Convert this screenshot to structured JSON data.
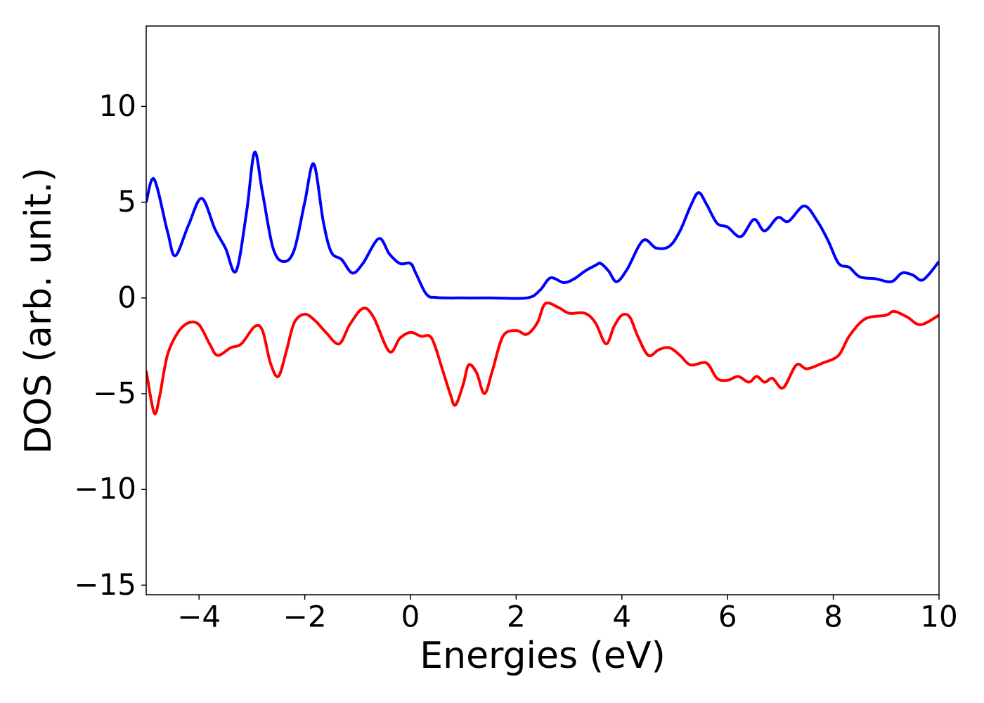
{
  "chart_data": {
    "type": "line",
    "xlabel": "Energies (eV)",
    "ylabel": "DOS (arb. unit.)",
    "xlim": [
      -5,
      10
    ],
    "ylim": [
      -15.5,
      14.2
    ],
    "xticks": [
      {
        "value": -4,
        "label": "−4"
      },
      {
        "value": -2,
        "label": "−2"
      },
      0,
      2,
      4,
      6,
      8,
      10
    ],
    "yticks": [
      {
        "value": -15,
        "label": "−15"
      },
      {
        "value": -10,
        "label": "−10"
      },
      {
        "value": -5,
        "label": "−5"
      },
      0,
      5,
      10
    ],
    "series": [
      {
        "color": "#0000ff",
        "x": [
          -5,
          -4.85,
          -4.6,
          -4.45,
          -4.2,
          -3.95,
          -3.7,
          -3.5,
          -3.3,
          -3.1,
          -2.95,
          -2.8,
          -2.6,
          -2.4,
          -2.2,
          -2.0,
          -1.83,
          -1.65,
          -1.5,
          -1.3,
          -1.1,
          -0.9,
          -0.6,
          -0.4,
          -0.2,
          0,
          0.1,
          0.3,
          0.5,
          1.0,
          1.5,
          2.2,
          2.45,
          2.65,
          2.9,
          3.1,
          3.3,
          3.5,
          3.6,
          3.75,
          3.9,
          4.1,
          4.4,
          4.65,
          4.9,
          5.1,
          5.3,
          5.45,
          5.6,
          5.8,
          6.0,
          6.25,
          6.5,
          6.7,
          6.95,
          7.15,
          7.45,
          7.7,
          7.9,
          8.1,
          8.3,
          8.5,
          8.8,
          9.1,
          9.3,
          9.5,
          9.7,
          10
        ],
        "values": [
          5.0,
          6.2,
          3.5,
          2.2,
          3.8,
          5.2,
          3.6,
          2.6,
          1.4,
          4.5,
          7.6,
          5.5,
          2.6,
          1.9,
          2.5,
          5.0,
          7.0,
          4.0,
          2.4,
          2.0,
          1.3,
          1.8,
          3.1,
          2.3,
          1.8,
          1.8,
          1.3,
          0.2,
          0.02,
          0,
          0,
          0,
          0.4,
          1.05,
          0.8,
          1.0,
          1.4,
          1.7,
          1.8,
          1.4,
          0.85,
          1.5,
          3.0,
          2.6,
          2.7,
          3.5,
          4.8,
          5.5,
          4.9,
          3.9,
          3.7,
          3.2,
          4.1,
          3.5,
          4.2,
          4.0,
          4.8,
          4.0,
          3.0,
          1.8,
          1.6,
          1.1,
          1.0,
          0.85,
          1.3,
          1.2,
          0.95,
          1.9
        ]
      },
      {
        "color": "#ff0000",
        "x": [
          -5,
          -4.85,
          -4.75,
          -4.6,
          -4.4,
          -4.2,
          -4.0,
          -3.8,
          -3.65,
          -3.4,
          -3.2,
          -2.95,
          -2.8,
          -2.65,
          -2.5,
          -2.35,
          -2.2,
          -2.0,
          -1.8,
          -1.6,
          -1.35,
          -1.15,
          -0.9,
          -0.7,
          -0.4,
          -0.2,
          0,
          0.2,
          0.4,
          0.6,
          0.75,
          0.85,
          1.0,
          1.1,
          1.25,
          1.4,
          1.55,
          1.75,
          2.0,
          2.2,
          2.4,
          2.55,
          2.8,
          3.0,
          3.3,
          3.5,
          3.7,
          3.85,
          4.0,
          4.15,
          4.3,
          4.5,
          4.7,
          4.9,
          5.1,
          5.3,
          5.6,
          5.8,
          6.0,
          6.2,
          6.4,
          6.55,
          6.7,
          6.85,
          7.05,
          7.3,
          7.5,
          7.8,
          8.1,
          8.3,
          8.6,
          9.0,
          9.15,
          9.4,
          9.65,
          10
        ],
        "values": [
          -3.8,
          -6.0,
          -5.2,
          -3.0,
          -1.8,
          -1.3,
          -1.4,
          -2.4,
          -3.0,
          -2.6,
          -2.4,
          -1.5,
          -1.7,
          -3.4,
          -4.1,
          -2.8,
          -1.3,
          -0.85,
          -1.2,
          -1.8,
          -2.4,
          -1.4,
          -0.55,
          -1.0,
          -2.8,
          -2.1,
          -1.8,
          -2.0,
          -2.1,
          -3.7,
          -5.0,
          -5.6,
          -4.5,
          -3.5,
          -3.9,
          -5.0,
          -3.8,
          -2.0,
          -1.7,
          -1.9,
          -1.3,
          -0.3,
          -0.5,
          -0.8,
          -0.8,
          -1.3,
          -2.4,
          -1.5,
          -0.9,
          -1.0,
          -2.0,
          -3.0,
          -2.7,
          -2.6,
          -3.0,
          -3.5,
          -3.4,
          -4.2,
          -4.3,
          -4.1,
          -4.4,
          -4.1,
          -4.4,
          -4.2,
          -4.7,
          -3.5,
          -3.7,
          -3.4,
          -3.0,
          -2.0,
          -1.1,
          -0.9,
          -0.7,
          -1.0,
          -1.4,
          -0.9
        ]
      }
    ]
  }
}
